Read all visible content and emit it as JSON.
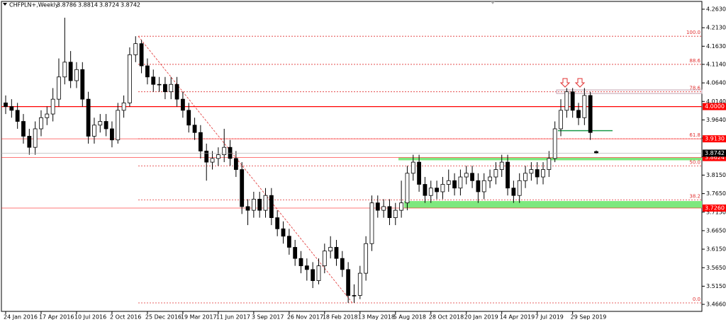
{
  "chart_data": {
    "type": "candlestick",
    "symbol": "CHFPLN+,Weekly",
    "categories": [
      "24 Jan 2016",
      null,
      null,
      null,
      null,
      null,
      "17 Apr 2016",
      null,
      null,
      null,
      null,
      null,
      "10 Jul 2016",
      null,
      null,
      null,
      null,
      null,
      "2 Oct 2016",
      null,
      null,
      null,
      null,
      null,
      "25 Dec 2016",
      null,
      null,
      null,
      null,
      null,
      "19 Mar 2017",
      null,
      null,
      null,
      null,
      null,
      "11 Jun 2017",
      null,
      null,
      null,
      null,
      null,
      "3 Sep 2017",
      null,
      null,
      null,
      null,
      null,
      "26 Nov 2017",
      null,
      null,
      null,
      null,
      null,
      "18 Feb 2018",
      null,
      null,
      null,
      null,
      null,
      "13 May 2018",
      null,
      null,
      null,
      null,
      null,
      "5 Aug 2018",
      null,
      null,
      null,
      null,
      null,
      "28 Oct 2018",
      null,
      null,
      null,
      null,
      null,
      "20 Jan 2019",
      null,
      null,
      null,
      null,
      null,
      "14 Apr 2019",
      null,
      null,
      null,
      null,
      null,
      "7 Jul 2019",
      null,
      null,
      null,
      null,
      null,
      "29 Sep 2019",
      null,
      null,
      null,
      null
    ],
    "open": [
      4.01,
      4.0,
      3.99,
      3.96,
      3.92,
      3.89,
      3.94,
      3.97,
      3.98,
      4.02,
      4.08,
      4.12,
      4.07,
      4.1,
      4.02,
      3.92,
      3.95,
      3.96,
      3.94,
      3.91,
      3.99,
      4.01,
      4.14,
      4.17,
      4.11,
      4.08,
      4.06,
      4.06,
      4.04,
      4.06,
      4.02,
      3.99,
      3.95,
      3.93,
      3.88,
      3.85,
      3.86,
      3.87,
      3.89,
      3.86,
      3.83,
      3.73,
      3.72,
      3.75,
      3.72,
      3.76,
      3.7,
      3.67,
      3.65,
      3.62,
      3.59,
      3.57,
      3.56,
      3.53,
      3.57,
      3.61,
      3.62,
      3.59,
      3.56,
      3.49,
      3.49,
      3.55,
      3.63,
      3.74,
      3.72,
      3.73,
      3.7,
      3.72,
      3.74,
      3.82,
      3.85,
      3.79,
      3.76,
      3.78,
      3.77,
      3.79,
      3.8,
      3.78,
      3.81,
      3.82,
      3.8,
      3.77,
      3.8,
      3.81,
      3.83,
      3.85,
      3.78,
      3.76,
      3.8,
      3.82,
      3.83,
      3.81,
      3.83,
      3.86,
      3.94,
      3.99,
      4.04,
      3.99,
      3.97,
      4.03,
      3.8786
    ],
    "high": [
      4.03,
      4.02,
      4.01,
      3.98,
      3.94,
      3.96,
      3.99,
      4.0,
      4.05,
      4.13,
      4.24,
      4.15,
      4.12,
      4.12,
      4.04,
      3.97,
      3.98,
      3.98,
      3.96,
      4.01,
      4.03,
      4.16,
      4.19,
      4.18,
      4.13,
      4.1,
      4.08,
      4.08,
      4.08,
      4.08,
      4.04,
      4.01,
      3.97,
      3.95,
      3.9,
      3.88,
      3.89,
      3.94,
      3.91,
      3.88,
      3.85,
      3.75,
      3.77,
      3.77,
      3.78,
      3.78,
      3.72,
      3.69,
      3.67,
      3.64,
      3.61,
      3.59,
      3.58,
      3.59,
      3.63,
      3.65,
      3.64,
      3.61,
      3.58,
      3.52,
      3.57,
      3.65,
      3.76,
      3.76,
      3.75,
      3.75,
      3.74,
      3.8,
      3.84,
      3.87,
      3.87,
      3.81,
      3.8,
      3.8,
      3.81,
      3.83,
      3.82,
      3.83,
      3.84,
      3.84,
      3.82,
      3.82,
      3.83,
      3.85,
      3.87,
      3.87,
      3.8,
      3.82,
      3.84,
      3.85,
      3.85,
      3.85,
      3.88,
      3.96,
      4.02,
      4.05,
      4.05,
      4.01,
      4.05,
      4.04,
      3.8814
    ],
    "low": [
      3.98,
      3.97,
      3.94,
      3.9,
      3.87,
      3.87,
      3.92,
      3.95,
      3.96,
      4.0,
      4.06,
      4.05,
      4.05,
      4.0,
      3.9,
      3.9,
      3.93,
      3.92,
      3.89,
      3.9,
      3.97,
      4.0,
      4.12,
      4.09,
      4.06,
      4.04,
      4.04,
      4.02,
      4.02,
      4.0,
      3.97,
      3.93,
      3.91,
      3.86,
      3.8,
      3.83,
      3.84,
      3.85,
      3.84,
      3.81,
      3.71,
      3.68,
      3.7,
      3.7,
      3.7,
      3.68,
      3.65,
      3.63,
      3.6,
      3.57,
      3.55,
      3.53,
      3.51,
      3.52,
      3.55,
      3.59,
      3.57,
      3.54,
      3.47,
      3.47,
      3.48,
      3.53,
      3.61,
      3.7,
      3.7,
      3.68,
      3.68,
      3.7,
      3.72,
      3.8,
      3.77,
      3.74,
      3.74,
      3.75,
      3.75,
      3.77,
      3.76,
      3.76,
      3.79,
      3.78,
      3.74,
      3.75,
      3.78,
      3.79,
      3.81,
      3.76,
      3.74,
      3.74,
      3.78,
      3.8,
      3.79,
      3.79,
      3.81,
      3.85,
      3.92,
      3.97,
      3.97,
      3.95,
      3.95,
      3.91,
      3.8724
    ],
    "close": [
      4.0,
      3.99,
      3.96,
      3.92,
      3.89,
      3.94,
      3.97,
      3.98,
      4.02,
      4.08,
      4.12,
      4.07,
      4.1,
      4.02,
      3.92,
      3.95,
      3.96,
      3.94,
      3.91,
      3.99,
      4.01,
      4.14,
      4.17,
      4.11,
      4.08,
      4.06,
      4.06,
      4.04,
      4.06,
      4.02,
      3.99,
      3.95,
      3.93,
      3.88,
      3.85,
      3.86,
      3.87,
      3.89,
      3.86,
      3.83,
      3.73,
      3.72,
      3.75,
      3.72,
      3.76,
      3.7,
      3.67,
      3.65,
      3.62,
      3.59,
      3.57,
      3.56,
      3.53,
      3.57,
      3.61,
      3.62,
      3.59,
      3.56,
      3.49,
      3.49,
      3.55,
      3.63,
      3.74,
      3.72,
      3.73,
      3.7,
      3.72,
      3.74,
      3.82,
      3.85,
      3.79,
      3.76,
      3.78,
      3.77,
      3.79,
      3.8,
      3.78,
      3.81,
      3.82,
      3.8,
      3.77,
      3.8,
      3.81,
      3.83,
      3.85,
      3.78,
      3.76,
      3.8,
      3.82,
      3.83,
      3.81,
      3.83,
      3.86,
      3.94,
      3.99,
      4.04,
      3.99,
      3.97,
      4.03,
      3.93,
      3.8742
    ],
    "up_color": "#ffffff",
    "down_color": "#000000",
    "ylim": [
      3.447,
      4.284
    ],
    "yticks": [
      {
        "value": 4.263,
        "label": "4.2630"
      },
      {
        "value": 4.213,
        "label": "4.2130"
      },
      {
        "value": 4.163,
        "label": "4.1630"
      },
      {
        "value": 4.114,
        "label": "4.1140"
      },
      {
        "value": 4.064,
        "label": "4.0640"
      },
      {
        "value": 4.014,
        "label": "4.0140"
      },
      {
        "value": 3.964,
        "label": "3.9640"
      },
      {
        "value": 3.915,
        "label": "3.9150"
      },
      {
        "value": 3.865,
        "label": "3.8650"
      },
      {
        "value": 3.815,
        "label": "3.8150"
      },
      {
        "value": 3.765,
        "label": "3.7650"
      },
      {
        "value": 3.715,
        "label": "3.7150"
      },
      {
        "value": 3.665,
        "label": "3.6650"
      },
      {
        "value": 3.615,
        "label": "3.6150"
      },
      {
        "value": 3.565,
        "label": "3.5650"
      },
      {
        "value": 3.515,
        "label": "3.5150"
      },
      {
        "value": 3.466,
        "label": "3.4660"
      }
    ],
    "levels": [
      {
        "value": 4.0,
        "label": "4.0000"
      },
      {
        "value": 3.913,
        "label": "3.9130"
      },
      {
        "value": 3.8624,
        "label": "3.8624"
      },
      {
        "value": 3.726,
        "label": "3.7260"
      }
    ],
    "level_color": "#ff0000",
    "fib": [
      {
        "value": 4.19,
        "label": "100.0"
      },
      {
        "value": 4.114,
        "label": "88.6"
      },
      {
        "value": 4.04,
        "label": "78.6"
      },
      {
        "value": 3.913,
        "label": "61.8"
      },
      {
        "value": 3.84,
        "label": "50.0"
      },
      {
        "value": 3.748,
        "label": "38.2"
      },
      {
        "value": 3.47,
        "label": "0.0"
      }
    ],
    "zones": [
      [
        3.855,
        3.8624
      ],
      [
        3.726,
        3.745
      ]
    ],
    "zone_color": "#7ee87e",
    "support_line": 3.935
  }
}
